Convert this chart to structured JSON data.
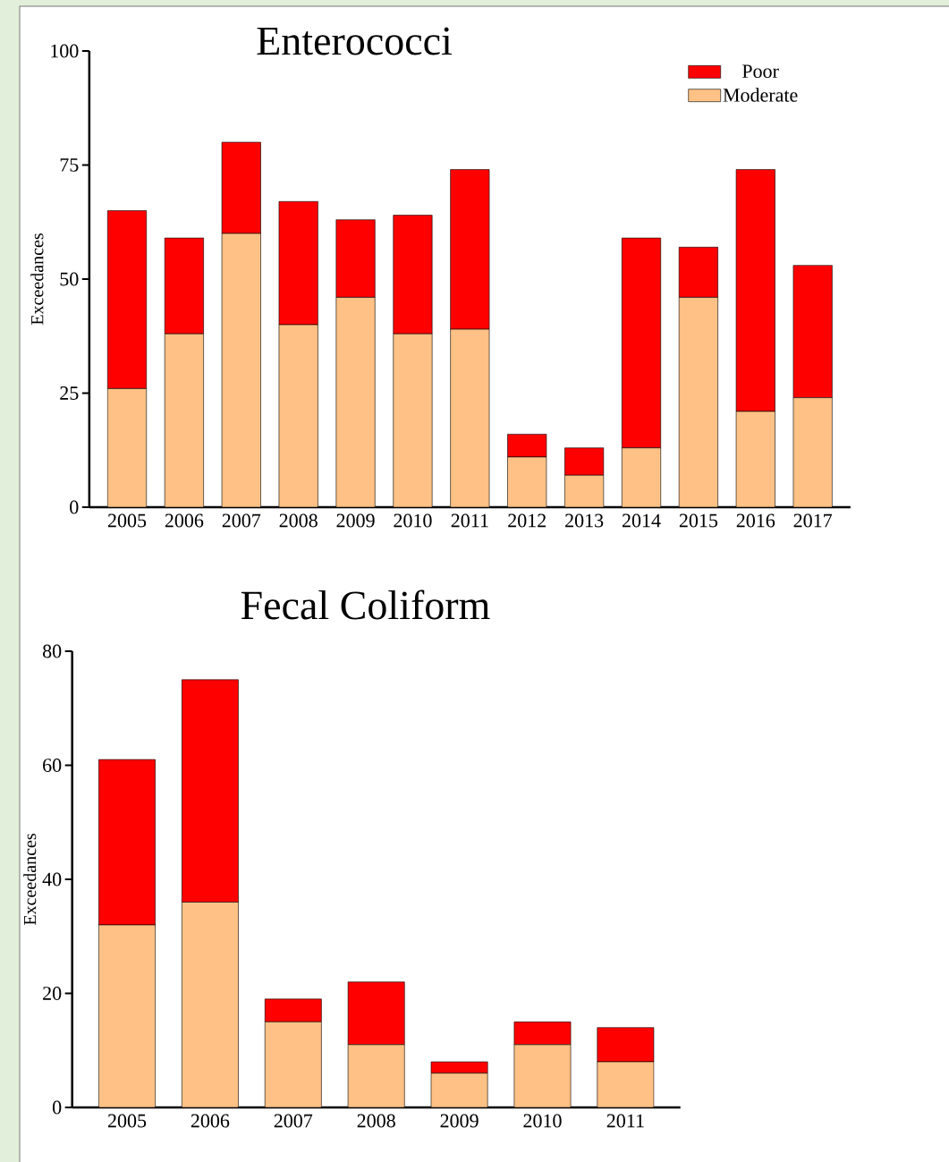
{
  "chart_data": [
    {
      "type": "bar",
      "title": "Enterococci",
      "ylabel": "Exceedances",
      "stacked": true,
      "legend": "top right",
      "categories": [
        "2005",
        "2006",
        "2007",
        "2008",
        "2009",
        "2010",
        "2011",
        "2012",
        "2013",
        "2014",
        "2015",
        "2016",
        "2017"
      ],
      "ylim": [
        0,
        100
      ],
      "yticks": [
        0,
        25,
        50,
        75,
        100
      ],
      "series": [
        {
          "name": "Moderate",
          "color": "#ffc185",
          "values": [
            26,
            38,
            60,
            40,
            46,
            38,
            39,
            11,
            7,
            13,
            46,
            21,
            24
          ]
        },
        {
          "name": "Poor",
          "color": "#ff0000",
          "values": [
            39,
            21,
            20,
            27,
            17,
            26,
            35,
            5,
            6,
            46,
            11,
            53,
            29
          ]
        }
      ]
    },
    {
      "type": "bar",
      "title": "Fecal Coliform",
      "ylabel": "Exceedances",
      "stacked": true,
      "categories": [
        "2005",
        "2006",
        "2007",
        "2008",
        "2009",
        "2010",
        "2011"
      ],
      "ylim": [
        0,
        80
      ],
      "yticks": [
        0,
        20,
        40,
        60,
        80
      ],
      "series": [
        {
          "color": "#ffc185",
          "values": [
            32,
            36,
            15,
            11,
            6,
            11,
            8
          ]
        },
        {
          "color": "#ff0000",
          "values": [
            29,
            39,
            4,
            11,
            2,
            4,
            6
          ]
        }
      ]
    }
  ]
}
